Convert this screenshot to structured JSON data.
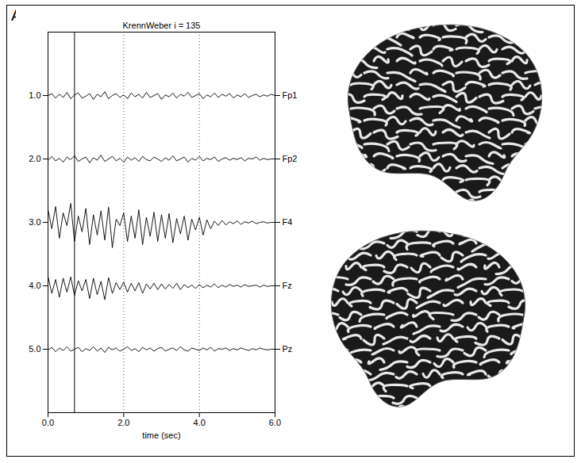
{
  "panel_label": "A",
  "chart_data": {
    "type": "line",
    "title": "KrennWeber i = 135",
    "xlabel": "time (sec)",
    "xlim": [
      0,
      6
    ],
    "xticks": [
      0,
      2,
      4,
      6
    ],
    "ylim": [
      6,
      0
    ],
    "yticks": [
      1,
      2,
      3,
      4,
      5
    ],
    "grid": true,
    "cursor_x": 0.7,
    "x": [
      0,
      0.1,
      0.2,
      0.3,
      0.4,
      0.5,
      0.6,
      0.7,
      0.8,
      0.9,
      1,
      1.1,
      1.2,
      1.3,
      1.4,
      1.5,
      1.6,
      1.7,
      1.8,
      1.9,
      2,
      2.1,
      2.2,
      2.3,
      2.4,
      2.5,
      2.6,
      2.7,
      2.8,
      2.9,
      3,
      3.1,
      3.2,
      3.3,
      3.4,
      3.5,
      3.6,
      3.7,
      3.8,
      3.9,
      4,
      4.1,
      4.2,
      4.3,
      4.4,
      4.5,
      4.6,
      4.7,
      4.8,
      4.9,
      5,
      5.1,
      5.2,
      5.3,
      5.4,
      5.5,
      5.6,
      5.7,
      5.8,
      5.9,
      6
    ],
    "series": [
      {
        "name": "Fp1",
        "color": "#000000",
        "values": [
          1.0,
          0.97,
          1.04,
          0.98,
          1.03,
          0.95,
          1.05,
          0.99,
          0.96,
          1.04,
          1.01,
          0.97,
          1.06,
          0.98,
          1.02,
          0.94,
          1.05,
          1.0,
          0.97,
          1.03,
          0.99,
          1.05,
          0.96,
          1.02,
          0.98,
          1.04,
          0.95,
          1.03,
          1.0,
          0.97,
          1.06,
          0.99,
          1.02,
          0.96,
          1.04,
          0.98,
          1.01,
          0.95,
          1.03,
          1.0,
          0.97,
          1.05,
          0.99,
          1.02,
          0.96,
          1.03,
          0.98,
          1.01,
          0.97,
          1.04,
          0.99,
          1.02,
          0.97,
          1.03,
          1.0,
          0.98,
          1.02,
          0.99,
          1.01,
          0.98,
          1.0
        ]
      },
      {
        "name": "Fp2",
        "color": "#000000",
        "values": [
          2.02,
          1.96,
          2.03,
          1.99,
          2.05,
          1.97,
          2.01,
          1.95,
          2.04,
          2.0,
          1.97,
          2.06,
          1.98,
          2.02,
          1.94,
          2.04,
          2.0,
          1.96,
          2.03,
          1.99,
          2.05,
          1.97,
          2.02,
          1.98,
          2.04,
          1.96,
          2.01,
          2.03,
          1.97,
          2.0,
          2.04,
          1.98,
          2.02,
          1.95,
          2.03,
          2.0,
          1.97,
          2.05,
          1.99,
          2.02,
          1.96,
          2.03,
          1.99,
          2.01,
          1.97,
          2.04,
          2.0,
          1.98,
          2.02,
          1.99,
          2.01,
          1.98,
          2.03,
          1.99,
          2.0,
          1.97,
          2.02,
          1.99,
          2.01,
          2.0,
          2.0
        ]
      },
      {
        "name": "F4",
        "color": "#000000",
        "values": [
          2.8,
          3.1,
          2.75,
          3.25,
          2.85,
          3.05,
          2.7,
          3.3,
          2.9,
          3.15,
          2.78,
          3.35,
          2.88,
          3.2,
          2.82,
          3.28,
          2.76,
          3.4,
          2.95,
          3.05,
          2.85,
          3.3,
          2.9,
          3.25,
          2.8,
          3.35,
          2.92,
          3.22,
          2.84,
          3.3,
          2.88,
          3.25,
          2.86,
          3.32,
          2.94,
          3.18,
          2.9,
          3.28,
          2.95,
          3.12,
          2.92,
          3.2,
          2.96,
          3.1,
          2.98,
          3.05,
          2.97,
          3.04,
          2.99,
          3.02,
          2.98,
          3.03,
          2.99,
          3.01,
          2.98,
          3.02,
          3.0,
          2.99,
          3.01,
          3.0,
          3.0
        ]
      },
      {
        "name": "Fz",
        "color": "#000000",
        "values": [
          3.85,
          4.12,
          3.9,
          4.18,
          3.88,
          4.1,
          3.86,
          4.15,
          3.92,
          4.08,
          3.9,
          4.2,
          3.88,
          4.14,
          3.93,
          4.22,
          3.87,
          4.12,
          3.95,
          4.06,
          3.94,
          4.1,
          3.96,
          4.08,
          3.95,
          4.12,
          3.97,
          4.05,
          3.96,
          4.06,
          3.97,
          4.05,
          3.98,
          4.04,
          3.96,
          4.06,
          3.98,
          4.03,
          3.99,
          4.04,
          3.98,
          4.03,
          3.99,
          4.02,
          3.97,
          4.03,
          3.99,
          4.02,
          3.98,
          4.01,
          3.99,
          4.02,
          3.98,
          4.01,
          4.0,
          3.99,
          4.02,
          3.99,
          4.01,
          4.0,
          4.0
        ]
      },
      {
        "name": "Pz",
        "color": "#000000",
        "values": [
          5.01,
          4.97,
          5.04,
          4.98,
          5.02,
          4.96,
          5.03,
          5.0,
          4.97,
          5.04,
          4.99,
          5.02,
          4.96,
          5.03,
          4.98,
          5.05,
          4.97,
          5.01,
          4.98,
          5.03,
          5.0,
          4.96,
          5.02,
          4.99,
          5.04,
          4.97,
          5.01,
          4.98,
          5.03,
          4.99,
          4.97,
          5.03,
          5.0,
          4.98,
          5.02,
          4.96,
          5.01,
          5.03,
          4.98,
          5.0,
          5.02,
          4.98,
          5.01,
          4.97,
          5.03,
          4.99,
          5.0,
          4.98,
          5.02,
          4.99,
          5.01,
          4.98,
          5.0,
          5.02,
          4.99,
          5.01,
          4.98,
          5.0,
          5.01,
          5.0,
          5.0
        ]
      }
    ]
  }
}
